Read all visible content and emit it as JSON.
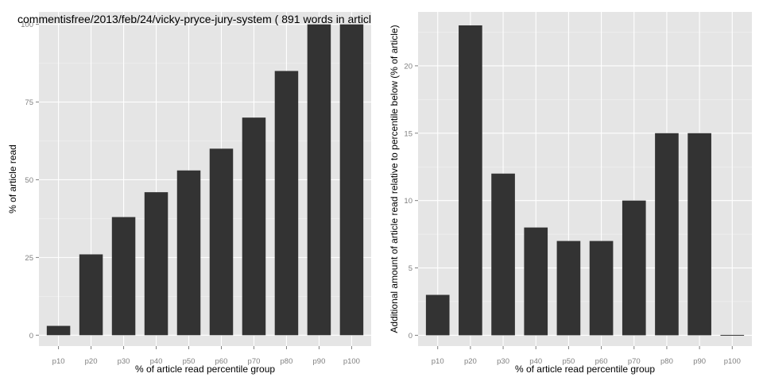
{
  "chart_data": [
    {
      "type": "bar",
      "title": "commentisfree/2013/feb/24/vicky-pryce-jury-system ( 891 words in articl",
      "xlabel": "% of article read percentile group",
      "ylabel": "% of article read",
      "categories": [
        "p10",
        "p20",
        "p30",
        "p40",
        "p50",
        "p60",
        "p70",
        "p80",
        "p90",
        "p100"
      ],
      "values": [
        3,
        26,
        38,
        46,
        53,
        60,
        70,
        85,
        100,
        100
      ],
      "ylim": [
        -3.5,
        104
      ],
      "yticks": [
        0,
        25,
        50,
        75,
        100
      ],
      "grid": true,
      "bar_color": "#333333",
      "panel_color": "#e5e5e5"
    },
    {
      "type": "bar",
      "title": "",
      "xlabel": "% of article read percentile group",
      "ylabel": "Additional amount of article read relative to percentile below (% of article)",
      "categories": [
        "p10",
        "p20",
        "p30",
        "p40",
        "p50",
        "p60",
        "p70",
        "p80",
        "p90",
        "p100"
      ],
      "values": [
        3,
        23,
        12,
        8,
        7,
        7,
        10,
        15,
        15,
        0
      ],
      "ylim": [
        -0.8,
        24
      ],
      "yticks": [
        0,
        5,
        10,
        15,
        20
      ],
      "grid": true,
      "bar_color": "#333333",
      "panel_color": "#e5e5e5"
    }
  ]
}
